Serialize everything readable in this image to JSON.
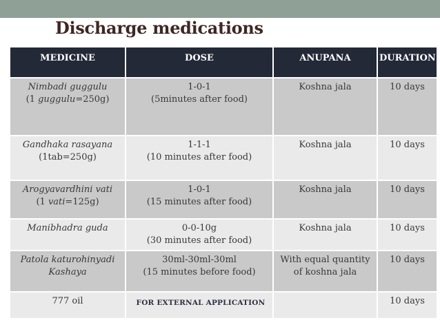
{
  "slide": {
    "title": "Discharge medications"
  },
  "theme": {
    "top_bar_color": "#8FA096",
    "title_color": "#3E2823",
    "header_bg": "#242938",
    "header_text": "#FFFFFF",
    "row_dark": "#C9C9C9",
    "row_light": "#EAEAEA",
    "body_text": "#383838",
    "note_text": "#2E3240",
    "border_color": "#FFFFFF"
  },
  "table": {
    "columns": [
      "MEDICINE",
      "DOSE",
      "ANUPANA",
      "DURATION"
    ],
    "rows": [
      {
        "medicine": [
          [
            {
              "t": "Nimbadi guggulu",
              "i": true
            }
          ],
          [
            {
              "t": "(1 ",
              "i": false
            },
            {
              "t": "guggulu",
              "i": true
            },
            {
              "t": "=250g)",
              "i": false
            }
          ]
        ],
        "dose": [
          "1-0-1",
          "(5minutes after food)"
        ],
        "dose_note": false,
        "anupana": "Koshna jala",
        "duration": "10 days"
      },
      {
        "medicine": [
          [
            {
              "t": "Gandhaka rasayana",
              "i": true
            }
          ],
          [
            {
              "t": "(1tab=250g)",
              "i": false
            }
          ]
        ],
        "dose": [
          "1-1-1",
          "(10 minutes after food)"
        ],
        "dose_note": false,
        "anupana": "Koshna jala",
        "duration": "10 days"
      },
      {
        "medicine": [
          [
            {
              "t": "Arogyavardhini vati",
              "i": true
            }
          ],
          [
            {
              "t": "(1 ",
              "i": false
            },
            {
              "t": "vati",
              "i": true
            },
            {
              "t": "=125g)",
              "i": false
            }
          ]
        ],
        "dose": [
          "1-0-1",
          "(15 minutes after food)"
        ],
        "dose_note": false,
        "anupana": "Koshna jala",
        "duration": "10 days"
      },
      {
        "medicine": [
          [
            {
              "t": "Manibhadra guda",
              "i": true
            }
          ]
        ],
        "dose": [
          "0-0-10g",
          "(30 minutes after food)"
        ],
        "dose_note": false,
        "anupana": "Koshna jala",
        "duration": "10 days"
      },
      {
        "medicine": [
          [
            {
              "t": "Patola katurohinyadi",
              "i": true
            }
          ],
          [
            {
              "t": "Kashaya",
              "i": true
            }
          ]
        ],
        "dose": [
          "30ml-30ml-30ml",
          "(15 minutes before food)"
        ],
        "dose_note": false,
        "anupana": "With equal quantity of koshna jala",
        "duration": "10 days"
      },
      {
        "medicine": [
          [
            {
              "t": "777 oil",
              "i": false
            }
          ]
        ],
        "dose": [
          "FOR EXTERNAL APPLICATION"
        ],
        "dose_note": true,
        "anupana": "",
        "duration": "10 days"
      }
    ]
  }
}
